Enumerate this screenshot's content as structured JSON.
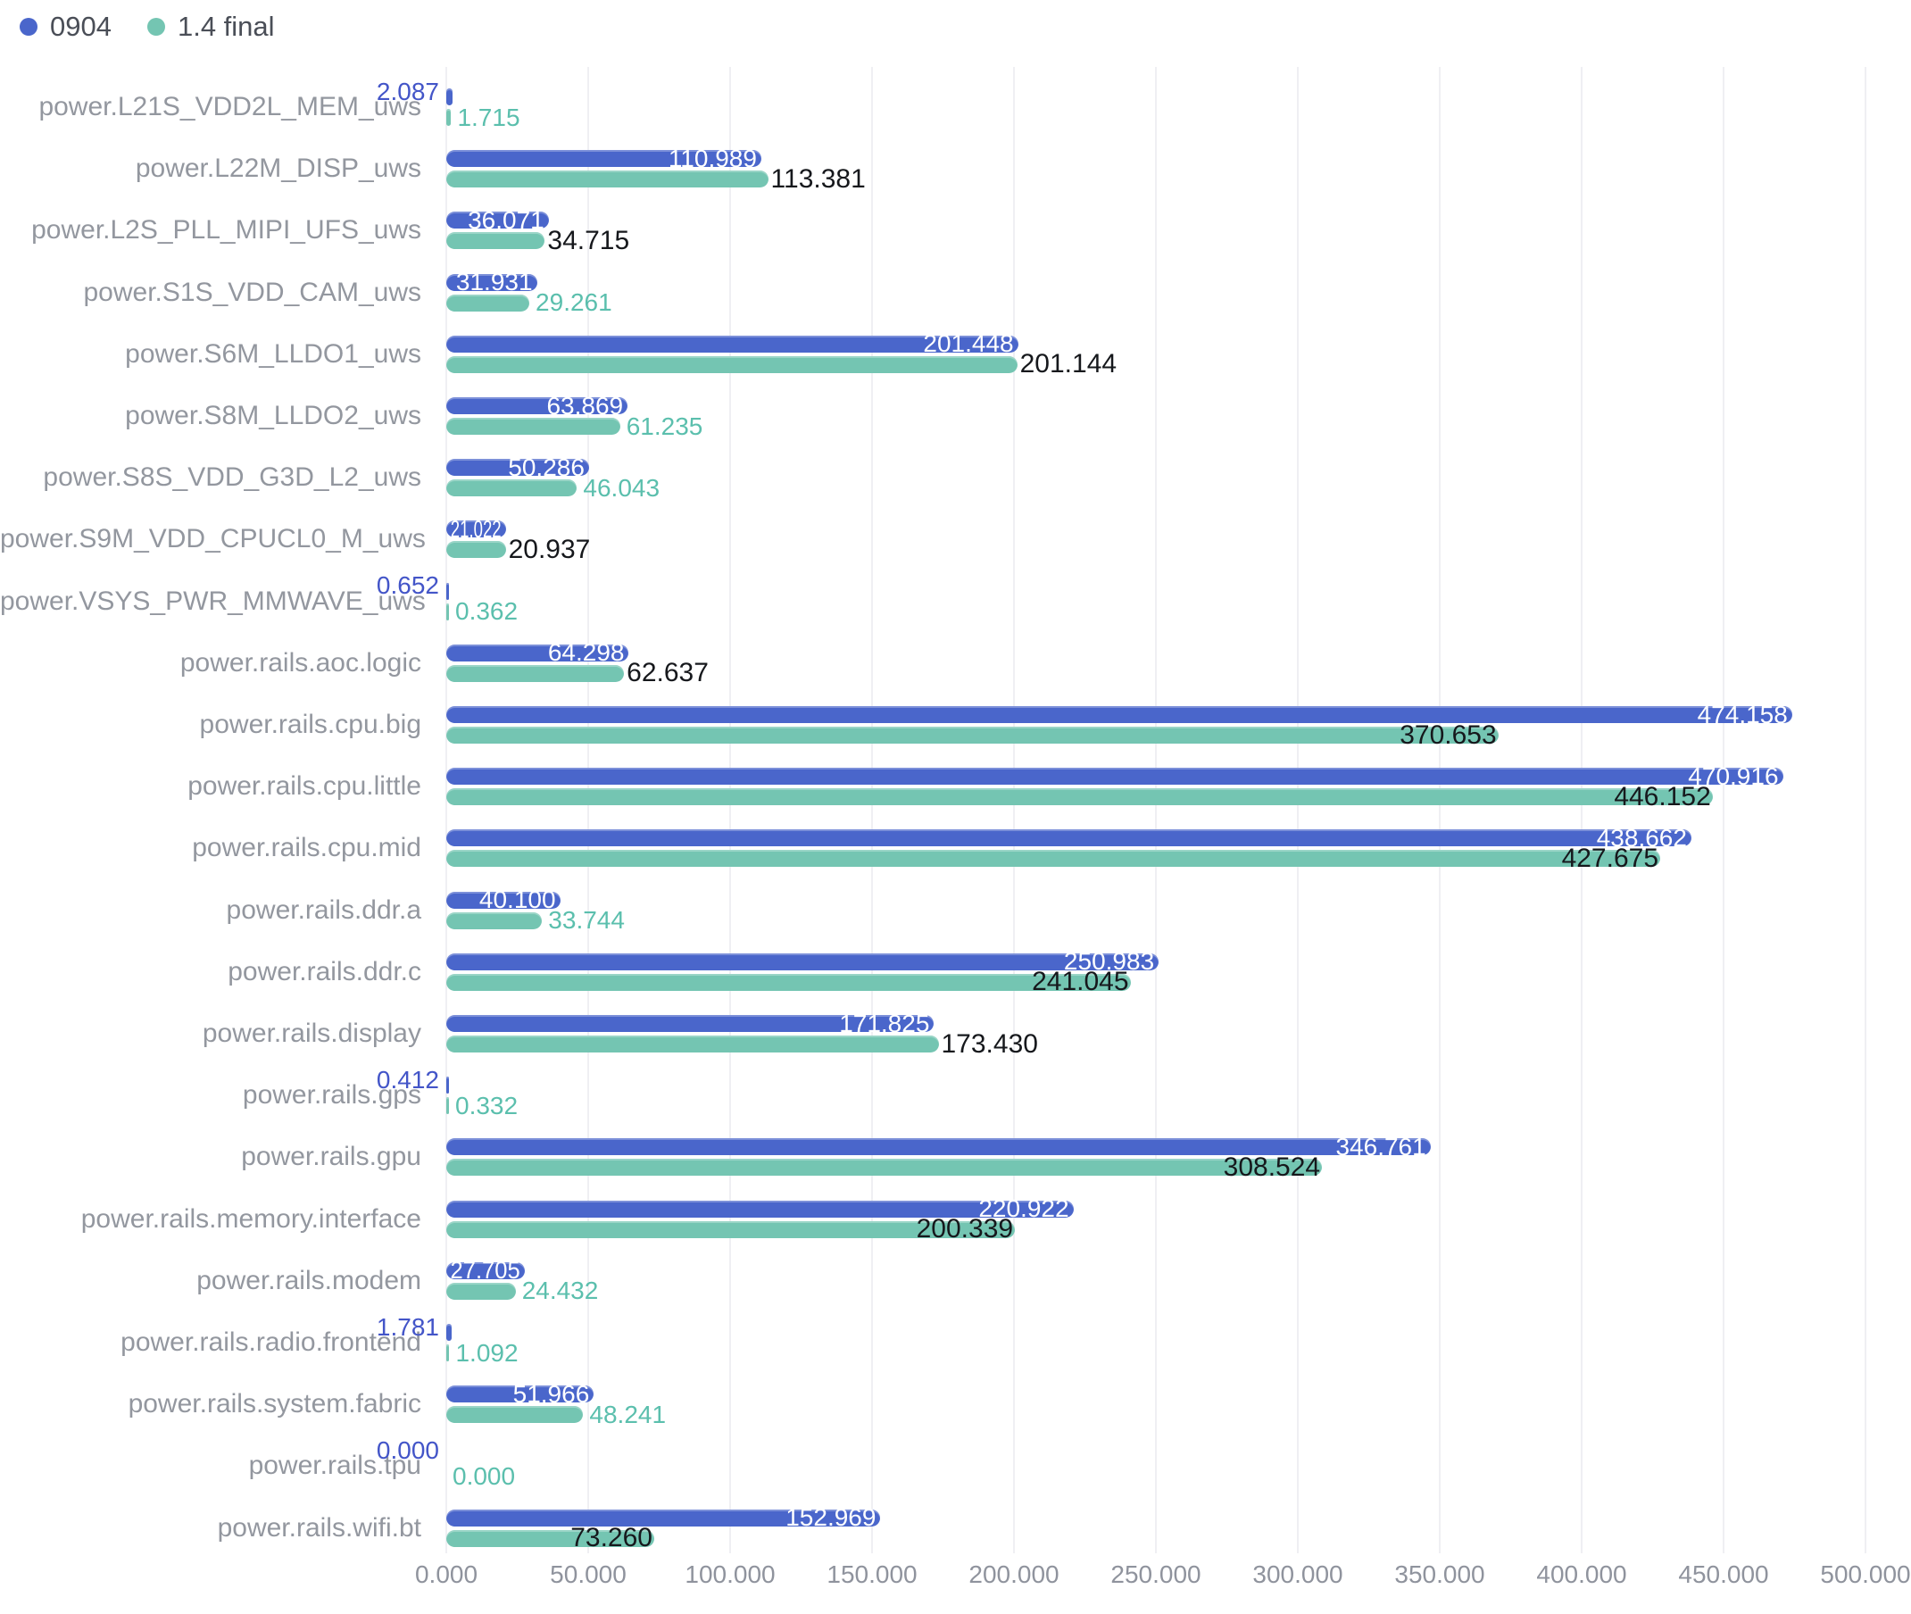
{
  "legend": [
    {
      "label": "0904",
      "color": "#4a66cb"
    },
    {
      "label": "1.4 final",
      "color": "#74c5b2"
    }
  ],
  "colors": {
    "bar_blue": "#4a66cb",
    "bar_teal": "#74c5b2",
    "label_white": "#ffffff",
    "label_dark": "#16181c",
    "label_teal_text": "#5bbfad",
    "label_blue_text": "#4355c8",
    "category_text": "#93979f",
    "axis_text": "#8f939d",
    "grid_line": "#efeff3"
  },
  "chart_data": {
    "type": "bar",
    "orientation": "horizontal",
    "title": "",
    "xlabel": "",
    "ylabel": "",
    "grid": true,
    "legend_position": "top-left",
    "axis": {
      "min": 0,
      "max": 500,
      "tick_step": 50,
      "tick_labels": [
        "0.000",
        "50.000",
        "100.000",
        "150.000",
        "200.000",
        "250.000",
        "300.000",
        "350.000",
        "400.000",
        "450.000",
        "500.000"
      ]
    },
    "categories": [
      "power.L21S_VDD2L_MEM_uws",
      "power.L22M_DISP_uws",
      "power.L2S_PLL_MIPI_UFS_uws",
      "power.S1S_VDD_CAM_uws",
      "power.S6M_LLDO1_uws",
      "power.S8M_LLDO2_uws",
      "power.S8S_VDD_G3D_L2_uws",
      "power.S9M_VDD_CPUCL0_M_uws",
      "power.VSYS_PWR_MMWAVE_uws",
      "power.rails.aoc.logic",
      "power.rails.cpu.big",
      "power.rails.cpu.little",
      "power.rails.cpu.mid",
      "power.rails.ddr.a",
      "power.rails.ddr.c",
      "power.rails.display",
      "power.rails.gps",
      "power.rails.gpu",
      "power.rails.memory.interface",
      "power.rails.modem",
      "power.rails.radio.frontend",
      "power.rails.system.fabric",
      "power.rails.tpu",
      "power.rails.wifi.bt"
    ],
    "series": [
      {
        "name": "0904",
        "color": "#4a66cb",
        "values": [
          "2.087",
          "110.989",
          "36.071",
          "31.931",
          "201.448",
          "63.869",
          "50.286",
          "21.022",
          "0.652",
          "64.298",
          "474.158",
          "470.916",
          "438.662",
          "40.100",
          "250.983",
          "171.825",
          "0.412",
          "346.761",
          "220.922",
          "27.705",
          "1.781",
          "51.966",
          "0.000",
          "152.969"
        ],
        "label_styles": [
          "axis-left",
          "in",
          "in",
          "in",
          "in",
          "in",
          "in",
          "in",
          "axis-left",
          "in",
          "in",
          "in",
          "in",
          "in",
          "in",
          "in",
          "axis-left",
          "in",
          "in",
          "in",
          "axis-left",
          "in",
          "axis-left",
          "in"
        ]
      },
      {
        "name": "1.4 final",
        "color": "#74c5b2",
        "values": [
          "1.715",
          "113.381",
          "34.715",
          "29.261",
          "201.144",
          "61.235",
          "46.043",
          "20.937",
          "0.362",
          "62.637",
          "370.653",
          "446.152",
          "427.675",
          "33.744",
          "241.045",
          "173.430",
          "0.332",
          "308.524",
          "200.339",
          "24.432",
          "1.092",
          "48.241",
          "0.000",
          "73.260"
        ],
        "label_styles": [
          "out-teal",
          "out-dark",
          "out-dark",
          "out-teal",
          "out-dark",
          "out-teal",
          "out-teal",
          "out-dark",
          "out-teal",
          "out-dark",
          "in-dark",
          "in-dark",
          "in-dark",
          "out-teal",
          "in-dark",
          "out-dark",
          "out-teal",
          "in-dark",
          "in-dark",
          "out-teal",
          "out-teal",
          "out-teal",
          "out-teal",
          "in-dark"
        ]
      }
    ]
  }
}
